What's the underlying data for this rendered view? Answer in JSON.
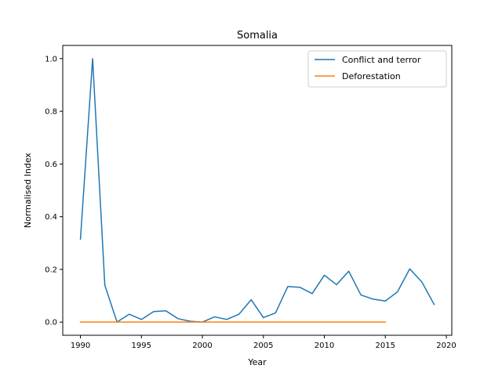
{
  "chart_data": {
    "type": "line",
    "title": "Somalia",
    "xlabel": "Year",
    "ylabel": "Normalised Index",
    "xlim": [
      1988.55,
      2020.45
    ],
    "ylim": [
      -0.05,
      1.05
    ],
    "xticks": [
      1990,
      1995,
      2000,
      2005,
      2010,
      2015,
      2020
    ],
    "yticks": [
      0.0,
      0.2,
      0.4,
      0.6,
      0.8,
      1.0
    ],
    "ytick_labels": [
      "0.0",
      "0.2",
      "0.4",
      "0.6",
      "0.8",
      "1.0"
    ],
    "legend_position": "top-right",
    "series": [
      {
        "name": "Conflict and terror",
        "color": "#1f77b4",
        "x": [
          1990,
          1991,
          1992,
          1993,
          1994,
          1995,
          1996,
          1997,
          1998,
          1999,
          2000,
          2001,
          2002,
          2003,
          2004,
          2005,
          2006,
          2007,
          2008,
          2009,
          2010,
          2011,
          2012,
          2013,
          2014,
          2015,
          2016,
          2017,
          2018,
          2019
        ],
        "values": [
          0.315,
          1.0,
          0.14,
          0.0,
          0.03,
          0.01,
          0.04,
          0.043,
          0.013,
          0.003,
          0.0,
          0.02,
          0.01,
          0.03,
          0.085,
          0.017,
          0.035,
          0.135,
          0.132,
          0.108,
          0.178,
          0.142,
          0.193,
          0.103,
          0.087,
          0.08,
          0.115,
          0.202,
          0.152,
          0.067
        ]
      },
      {
        "name": "Deforestation",
        "color": "#ff7f0e",
        "x": [
          1990,
          1991,
          1992,
          1993,
          1994,
          1995,
          1996,
          1997,
          1998,
          1999,
          2000,
          2001,
          2002,
          2003,
          2004,
          2005,
          2006,
          2007,
          2008,
          2009,
          2010,
          2011,
          2012,
          2013,
          2014,
          2015
        ],
        "values": [
          0,
          0,
          0,
          0,
          0,
          0,
          0,
          0,
          0,
          0,
          0,
          0,
          0,
          0,
          0,
          0,
          0,
          0,
          0,
          0,
          0,
          0,
          0,
          0,
          0,
          0
        ]
      }
    ]
  }
}
